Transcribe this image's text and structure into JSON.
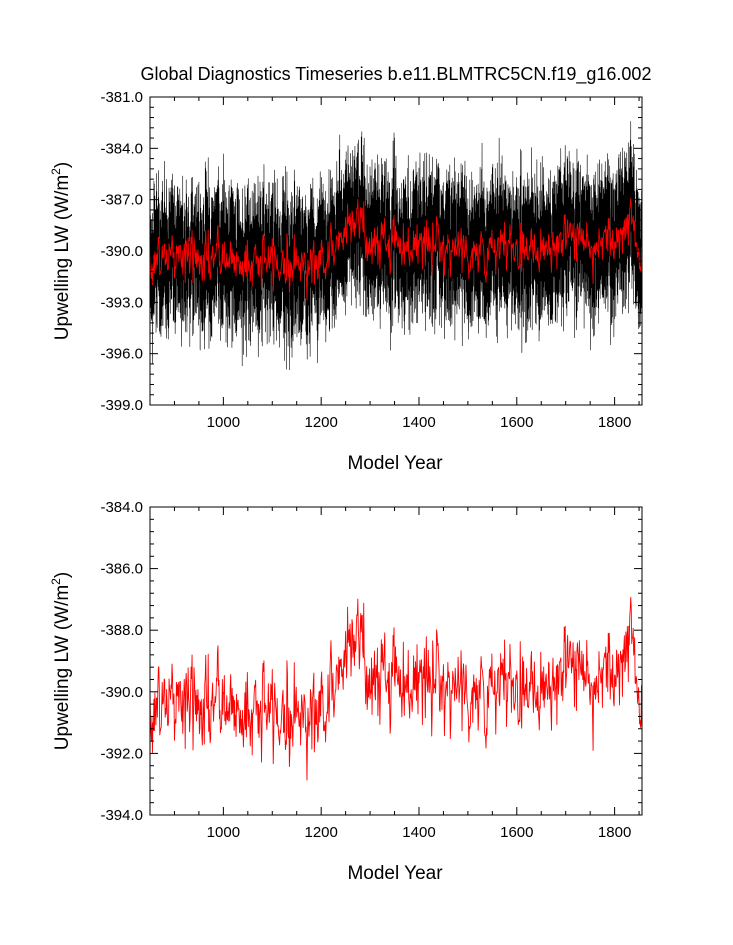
{
  "title": "Global Diagnostics Timeseries b.e11.BLMTRC5CN.f19_g16.002",
  "chart_data": [
    {
      "type": "line",
      "xlabel": "Model Year",
      "ylabel_main": "Upwelling LW (W/m",
      "ylabel_sup": "2",
      "ylabel_close": ")",
      "xlim": [
        850,
        1856
      ],
      "ylim": [
        -399.0,
        -381.0
      ],
      "xticks": [
        1000,
        1200,
        1400,
        1600,
        1800
      ],
      "xtick_labels": [
        "1000",
        "1200",
        "1400",
        "1600",
        "1800"
      ],
      "yticks": [
        -399.0,
        -396.0,
        -393.0,
        -390.0,
        -387.0,
        -384.0,
        -381.0
      ],
      "ytick_labels": [
        "-399.0",
        "-396.0",
        "-393.0",
        "-390.0",
        "-387.0",
        "-384.0",
        "-381.0"
      ],
      "series": [
        {
          "kind": "monthly",
          "color": "#000000",
          "x_start": 850,
          "x_end": 1856,
          "annual_cycle_amplitude": 2.6,
          "noise": 0.9,
          "x": [
            850,
            900,
            950,
            1000,
            1050,
            1100,
            1150,
            1200,
            1230,
            1260,
            1280,
            1300,
            1350,
            1400,
            1450,
            1500,
            1550,
            1600,
            1650,
            1700,
            1750,
            1800,
            1820,
            1840,
            1856
          ],
          "y": [
            -390.6,
            -390.2,
            -390.5,
            -390.4,
            -390.7,
            -390.6,
            -390.8,
            -390.5,
            -389.8,
            -387.8,
            -388.6,
            -389.6,
            -389.4,
            -389.7,
            -389.5,
            -390.0,
            -390.2,
            -389.7,
            -389.6,
            -389.4,
            -389.5,
            -389.2,
            -388.2,
            -389.0,
            -390.2
          ]
        },
        {
          "kind": "annual",
          "color": "#ff0000",
          "x_start": 850,
          "x_end": 1856,
          "noise": 0.75,
          "x": [
            850,
            900,
            950,
            1000,
            1050,
            1100,
            1150,
            1200,
            1230,
            1260,
            1280,
            1300,
            1350,
            1400,
            1450,
            1500,
            1550,
            1600,
            1650,
            1700,
            1750,
            1800,
            1820,
            1840,
            1856
          ],
          "y": [
            -390.6,
            -390.2,
            -390.5,
            -390.4,
            -390.7,
            -390.6,
            -390.8,
            -390.5,
            -389.8,
            -387.8,
            -388.6,
            -389.6,
            -389.4,
            -389.7,
            -389.5,
            -390.0,
            -390.2,
            -389.7,
            -389.6,
            -389.4,
            -389.5,
            -389.2,
            -388.2,
            -389.0,
            -390.2
          ]
        }
      ]
    },
    {
      "type": "line",
      "xlabel": "Model Year",
      "ylabel_main": "Upwelling LW (W/m",
      "ylabel_sup": "2",
      "ylabel_close": ")",
      "xlim": [
        850,
        1856
      ],
      "ylim": [
        -394.0,
        -384.0
      ],
      "xticks": [
        1000,
        1200,
        1400,
        1600,
        1800
      ],
      "xtick_labels": [
        "1000",
        "1200",
        "1400",
        "1600",
        "1800"
      ],
      "yticks": [
        -394.0,
        -392.0,
        -390.0,
        -388.0,
        -386.0,
        -384.0
      ],
      "ytick_labels": [
        "-394.0",
        "-392.0",
        "-390.0",
        "-388.0",
        "-386.0",
        "-384.0"
      ],
      "series": [
        {
          "kind": "annual",
          "color": "#ff0000",
          "x_start": 850,
          "x_end": 1856,
          "noise": 0.75,
          "x": [
            850,
            900,
            950,
            1000,
            1050,
            1100,
            1150,
            1200,
            1230,
            1260,
            1280,
            1300,
            1350,
            1400,
            1450,
            1500,
            1550,
            1600,
            1650,
            1700,
            1750,
            1800,
            1820,
            1840,
            1856
          ],
          "y": [
            -390.6,
            -390.2,
            -390.5,
            -390.4,
            -390.7,
            -390.6,
            -390.8,
            -390.5,
            -389.8,
            -387.8,
            -388.6,
            -389.6,
            -389.4,
            -389.7,
            -389.5,
            -390.0,
            -390.2,
            -389.7,
            -389.6,
            -389.4,
            -389.5,
            -389.2,
            -388.2,
            -389.0,
            -390.2
          ]
        }
      ]
    }
  ]
}
